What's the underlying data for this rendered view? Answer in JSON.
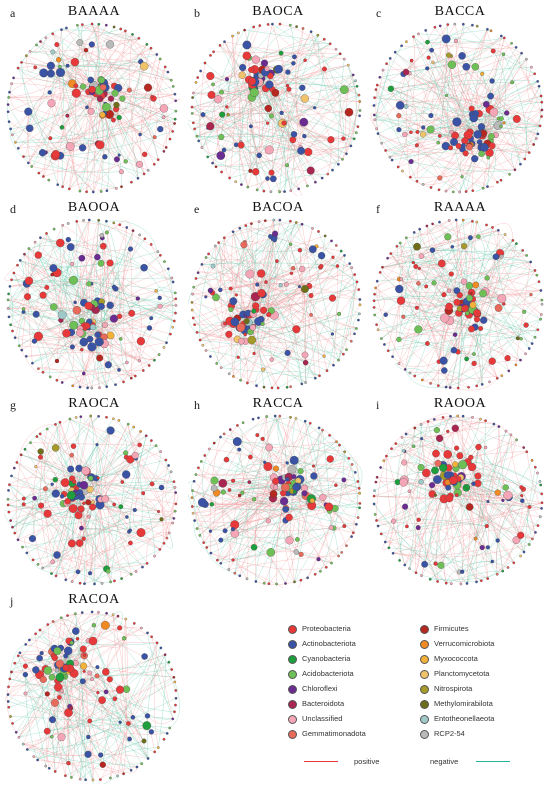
{
  "panels": [
    {
      "letter": "a",
      "title": "BAAAA"
    },
    {
      "letter": "b",
      "title": "BAOCA"
    },
    {
      "letter": "c",
      "title": "BACCA"
    },
    {
      "letter": "d",
      "title": "BAOOA"
    },
    {
      "letter": "e",
      "title": "BACOA"
    },
    {
      "letter": "f",
      "title": "RAAAA"
    },
    {
      "letter": "g",
      "title": "RAOCA"
    },
    {
      "letter": "h",
      "title": "RACCA"
    },
    {
      "letter": "i",
      "title": "RAOOA"
    },
    {
      "letter": "j",
      "title": "RACOA"
    }
  ],
  "legend": {
    "left": [
      {
        "label": "Proteobacteria",
        "color": "#e8393a"
      },
      {
        "label": "Actinobacteriota",
        "color": "#3a53a4"
      },
      {
        "label": "Cyanobacteria",
        "color": "#1e9e3c"
      },
      {
        "label": "Acidobacteriota",
        "color": "#6fbf57"
      },
      {
        "label": "Chloroflexi",
        "color": "#6a2c91"
      },
      {
        "label": "Bacteroidota",
        "color": "#a8264f"
      },
      {
        "label": "Unclassified",
        "color": "#f4a6b6"
      },
      {
        "label": "Gemmatimonadota",
        "color": "#e86a5a"
      }
    ],
    "right": [
      {
        "label": "Firmicutes",
        "color": "#b5271f"
      },
      {
        "label": "Verrucomicrobiota",
        "color": "#f08a24"
      },
      {
        "label": "Myxococcota",
        "color": "#f2b13a"
      },
      {
        "label": "Planctomycetota",
        "color": "#f0c26a"
      },
      {
        "label": "Nitrospirota",
        "color": "#a59a2a"
      },
      {
        "label": "Methylomirabilota",
        "color": "#6e6d1a"
      },
      {
        "label": "Entotheonellaeota",
        "color": "#9fc9c9"
      },
      {
        "label": "RCP2-54",
        "color": "#b9b9b9"
      }
    ],
    "edges": [
      {
        "label": "positive",
        "color": "#e8393a"
      },
      {
        "label": "negative",
        "color": "#27b3a0"
      }
    ]
  }
}
